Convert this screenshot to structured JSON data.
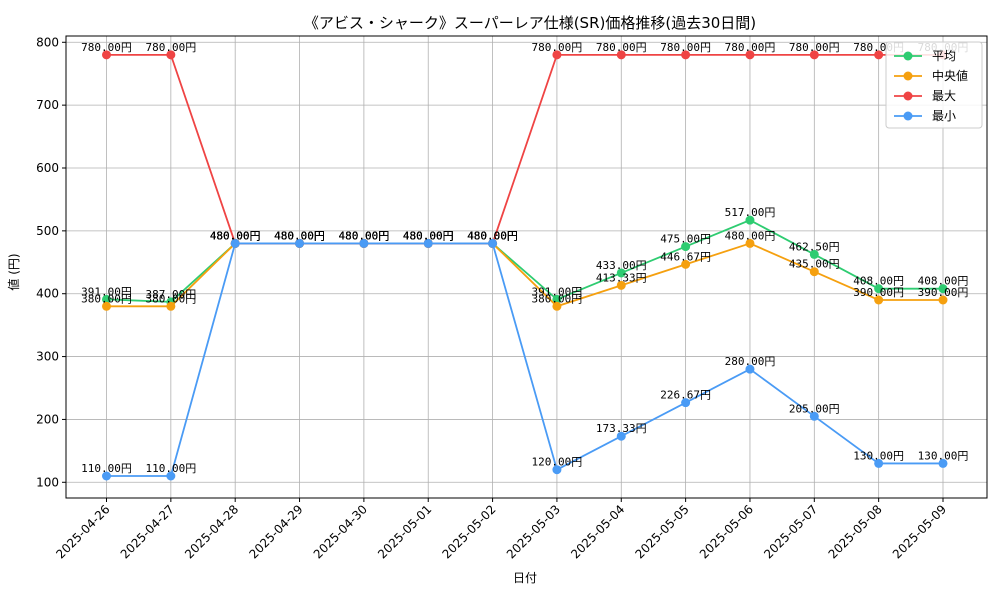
{
  "chart_data": {
    "type": "line",
    "title": "《アビス・シャーク》スーパーレア仕様(SR)価格推移(過去30日間)",
    "xlabel": "日付",
    "ylabel": "値 (円)",
    "ylim": [
      75,
      810
    ],
    "yticks": [
      100,
      200,
      300,
      400,
      500,
      600,
      700,
      800
    ],
    "grid": true,
    "legend_position": "top-right",
    "label_suffix": "円",
    "categories": [
      "2025-04-26",
      "2025-04-27",
      "2025-04-28",
      "2025-04-29",
      "2025-04-30",
      "2025-05-01",
      "2025-05-02",
      "2025-05-03",
      "2025-05-04",
      "2025-05-05",
      "2025-05-06",
      "2025-05-07",
      "2025-05-08",
      "2025-05-09"
    ],
    "series": [
      {
        "name": "平均",
        "color": "#2ecc71",
        "values": [
          391.0,
          387.0,
          480.0,
          480.0,
          480.0,
          480.0,
          480.0,
          391.0,
          433.0,
          475.0,
          517.0,
          462.5,
          408.0,
          408.0
        ]
      },
      {
        "name": "中央値",
        "color": "#f5a00f",
        "values": [
          380.0,
          380.0,
          480.0,
          480.0,
          480.0,
          480.0,
          480.0,
          380.0,
          413.33,
          446.67,
          480.0,
          435.0,
          390.0,
          390.0
        ]
      },
      {
        "name": "最大",
        "color": "#ef4444",
        "values": [
          780.0,
          780.0,
          480.0,
          480.0,
          480.0,
          480.0,
          480.0,
          780.0,
          780.0,
          780.0,
          780.0,
          780.0,
          780.0,
          780.0
        ]
      },
      {
        "name": "最小",
        "color": "#4a9bf5",
        "values": [
          110.0,
          110.0,
          480.0,
          480.0,
          480.0,
          480.0,
          480.0,
          120.0,
          173.33,
          226.67,
          280.0,
          205.0,
          130.0,
          130.0
        ]
      }
    ]
  }
}
